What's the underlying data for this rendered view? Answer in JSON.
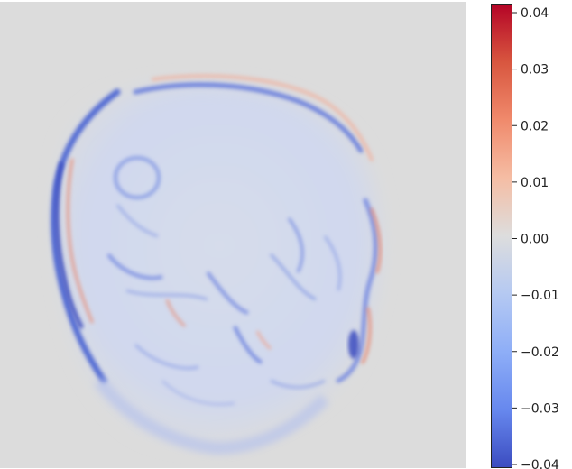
{
  "colormap": {
    "name": "coolwarm",
    "colors": [
      "#3b4cc0",
      "#b40426"
    ],
    "background": "#dcdcdc"
  },
  "colorbar": {
    "min": -0.04,
    "max": 0.04,
    "ticks": [
      {
        "value": 0.04,
        "label": "0.04"
      },
      {
        "value": 0.03,
        "label": "0.03"
      },
      {
        "value": 0.02,
        "label": "0.02"
      },
      {
        "value": 0.01,
        "label": "0.01"
      },
      {
        "value": 0.0,
        "label": "0.00"
      },
      {
        "value": -0.01,
        "label": "−0.01"
      },
      {
        "value": -0.02,
        "label": "−0.02"
      },
      {
        "value": -0.03,
        "label": "−0.03"
      },
      {
        "value": -0.04,
        "label": "−0.04"
      }
    ]
  }
}
